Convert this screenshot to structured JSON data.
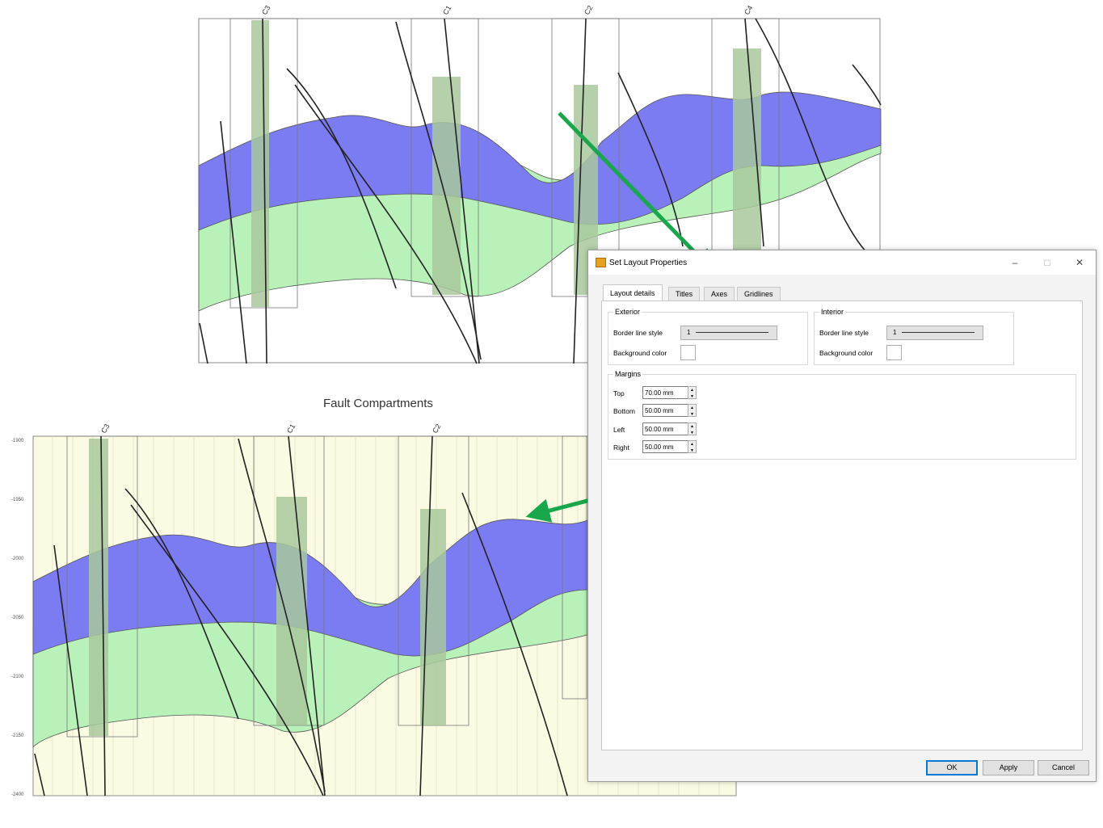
{
  "figure": {
    "bottom_title": "Fault Compartments",
    "well_labels": [
      "C3",
      "C1",
      "C2",
      "C4"
    ],
    "colors": {
      "blue_layer": "#7b7cf2",
      "green_layer": "#b6f2b6",
      "well_log": "#6f9f64",
      "frame_bg": "#fbfbe3",
      "arrow": "#18a84b",
      "fault": "#222222"
    }
  },
  "dialog": {
    "title": "Set Layout Properties",
    "window_controls": {
      "minimize": "–",
      "maximize": "□",
      "close": "✕"
    },
    "tabs": [
      "Layout details",
      "Titles",
      "Axes",
      "Gridlines"
    ],
    "active_tab": "Layout details",
    "exterior": {
      "label": "Exterior",
      "border_line_style_label": "Border line style",
      "border_line_style_value": "1",
      "background_color_label": "Background color"
    },
    "interior": {
      "label": "Interior",
      "border_line_style_label": "Border line style",
      "border_line_style_value": "1",
      "background_color_label": "Background color"
    },
    "margins": {
      "label": "Margins",
      "top_label": "Top",
      "top_value": "70.00 mm",
      "bottom_label": "Bottom",
      "bottom_value": "50.00 mm",
      "left_label": "Left",
      "left_value": "50.00 mm",
      "right_label": "Right",
      "right_value": "50.00 mm"
    },
    "buttons": {
      "ok": "OK",
      "apply": "Apply",
      "cancel": "Cancel"
    }
  }
}
